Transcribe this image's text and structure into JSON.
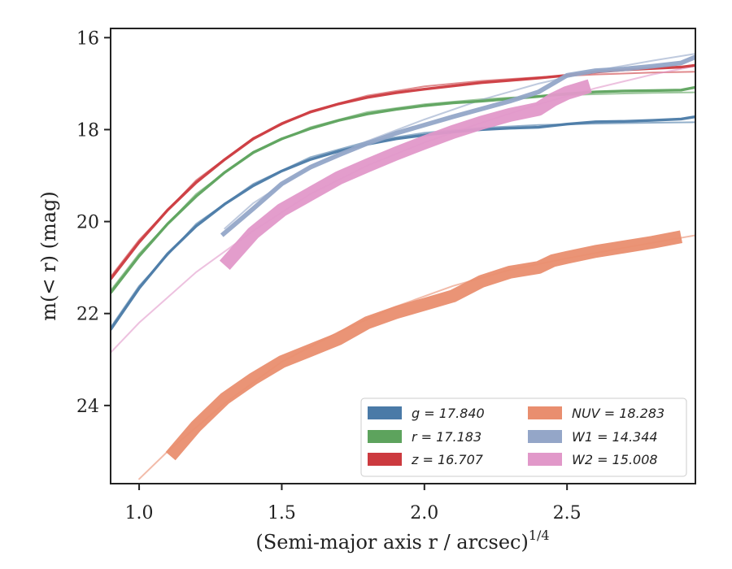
{
  "chart_data": {
    "type": "line",
    "title": "",
    "xlabel_main": "(Semi-major axis r / arcsec)",
    "xlabel_sup": "1/4",
    "ylabel_main": "m(< r) (mag)",
    "xlim": [
      0.9,
      2.95
    ],
    "ylim": [
      25.7,
      15.8
    ],
    "y_inverted": true,
    "x_ticks": [
      1.0,
      1.5,
      2.0,
      2.5
    ],
    "x_tick_labels": [
      "1.0",
      "1.5",
      "2.0",
      "2.5"
    ],
    "y_ticks": [
      16,
      18,
      20,
      22,
      24
    ],
    "y_tick_labels": [
      "16",
      "18",
      "20",
      "22",
      "24"
    ],
    "grid": false,
    "legend_position": "lower-right",
    "legend_columns": 2,
    "series": [
      {
        "name": "g = 17.840",
        "color": "#4a7aa7",
        "band_width": 0.06,
        "data": [
          [
            0.9,
            22.35
          ],
          [
            1.0,
            21.45
          ],
          [
            1.1,
            20.7
          ],
          [
            1.2,
            20.1
          ],
          [
            1.3,
            19.62
          ],
          [
            1.4,
            19.22
          ],
          [
            1.5,
            18.9
          ],
          [
            1.6,
            18.65
          ],
          [
            1.7,
            18.47
          ],
          [
            1.8,
            18.32
          ],
          [
            1.9,
            18.2
          ],
          [
            2.0,
            18.12
          ],
          [
            2.1,
            18.05
          ],
          [
            2.2,
            18.0
          ],
          [
            2.3,
            17.97
          ],
          [
            2.4,
            17.95
          ],
          [
            2.5,
            17.88
          ],
          [
            2.6,
            17.83
          ],
          [
            2.7,
            17.82
          ],
          [
            2.8,
            17.8
          ],
          [
            2.9,
            17.77
          ],
          [
            2.95,
            17.72
          ]
        ],
        "model": [
          [
            0.9,
            22.3
          ],
          [
            1.0,
            21.4
          ],
          [
            1.2,
            20.05
          ],
          [
            1.4,
            19.18
          ],
          [
            1.6,
            18.6
          ],
          [
            1.8,
            18.26
          ],
          [
            2.0,
            18.07
          ],
          [
            2.2,
            17.96
          ],
          [
            2.4,
            17.9
          ],
          [
            2.6,
            17.87
          ],
          [
            2.8,
            17.85
          ],
          [
            2.95,
            17.84
          ]
        ]
      },
      {
        "name": "r = 17.183",
        "color": "#5da35d",
        "band_width": 0.06,
        "data": [
          [
            0.9,
            21.55
          ],
          [
            1.0,
            20.75
          ],
          [
            1.1,
            20.05
          ],
          [
            1.2,
            19.45
          ],
          [
            1.3,
            18.93
          ],
          [
            1.4,
            18.5
          ],
          [
            1.5,
            18.2
          ],
          [
            1.6,
            17.98
          ],
          [
            1.7,
            17.8
          ],
          [
            1.8,
            17.66
          ],
          [
            1.9,
            17.56
          ],
          [
            2.0,
            17.48
          ],
          [
            2.1,
            17.42
          ],
          [
            2.2,
            17.38
          ],
          [
            2.3,
            17.33
          ],
          [
            2.4,
            17.28
          ],
          [
            2.5,
            17.22
          ],
          [
            2.6,
            17.18
          ],
          [
            2.7,
            17.16
          ],
          [
            2.8,
            17.15
          ],
          [
            2.9,
            17.14
          ],
          [
            2.95,
            17.08
          ]
        ],
        "model": [
          [
            0.9,
            21.5
          ],
          [
            1.0,
            20.7
          ],
          [
            1.2,
            19.4
          ],
          [
            1.4,
            18.48
          ],
          [
            1.6,
            17.95
          ],
          [
            1.8,
            17.62
          ],
          [
            2.0,
            17.45
          ],
          [
            2.2,
            17.34
          ],
          [
            2.4,
            17.27
          ],
          [
            2.6,
            17.23
          ],
          [
            2.8,
            17.2
          ],
          [
            2.95,
            17.19
          ]
        ]
      },
      {
        "name": "z = 16.707",
        "color": "#cc3a3f",
        "band_width": 0.06,
        "data": [
          [
            0.9,
            21.25
          ],
          [
            1.0,
            20.45
          ],
          [
            1.1,
            19.75
          ],
          [
            1.2,
            19.15
          ],
          [
            1.3,
            18.65
          ],
          [
            1.4,
            18.2
          ],
          [
            1.5,
            17.87
          ],
          [
            1.6,
            17.62
          ],
          [
            1.7,
            17.44
          ],
          [
            1.8,
            17.3
          ],
          [
            1.9,
            17.2
          ],
          [
            2.0,
            17.12
          ],
          [
            2.1,
            17.05
          ],
          [
            2.2,
            16.98
          ],
          [
            2.3,
            16.93
          ],
          [
            2.4,
            16.88
          ],
          [
            2.5,
            16.82
          ],
          [
            2.6,
            16.75
          ],
          [
            2.7,
            16.7
          ],
          [
            2.8,
            16.67
          ],
          [
            2.9,
            16.64
          ],
          [
            2.95,
            16.6
          ]
        ],
        "model": [
          [
            0.9,
            21.2
          ],
          [
            1.0,
            20.4
          ],
          [
            1.2,
            19.1
          ],
          [
            1.4,
            18.18
          ],
          [
            1.6,
            17.6
          ],
          [
            1.8,
            17.26
          ],
          [
            2.0,
            17.06
          ],
          [
            2.2,
            16.94
          ],
          [
            2.4,
            16.86
          ],
          [
            2.6,
            16.8
          ],
          [
            2.8,
            16.76
          ],
          [
            2.95,
            16.74
          ]
        ]
      },
      {
        "name": "NUV = 18.283",
        "color": "#e98e6f",
        "band_width": 0.28,
        "data": [
          [
            1.11,
            25.1
          ],
          [
            1.2,
            24.45
          ],
          [
            1.3,
            23.85
          ],
          [
            1.4,
            23.42
          ],
          [
            1.5,
            23.05
          ],
          [
            1.6,
            22.8
          ],
          [
            1.7,
            22.55
          ],
          [
            1.8,
            22.2
          ],
          [
            1.9,
            21.98
          ],
          [
            2.0,
            21.8
          ],
          [
            2.1,
            21.62
          ],
          [
            2.2,
            21.3
          ],
          [
            2.3,
            21.1
          ],
          [
            2.4,
            21.0
          ],
          [
            2.45,
            20.85
          ],
          [
            2.5,
            20.78
          ],
          [
            2.6,
            20.65
          ],
          [
            2.7,
            20.55
          ],
          [
            2.8,
            20.45
          ],
          [
            2.9,
            20.33
          ]
        ],
        "model": [
          [
            1.0,
            25.6
          ],
          [
            1.1,
            25.0
          ],
          [
            1.3,
            23.95
          ],
          [
            1.5,
            23.05
          ],
          [
            1.7,
            22.4
          ],
          [
            1.9,
            21.85
          ],
          [
            2.1,
            21.4
          ],
          [
            2.3,
            21.05
          ],
          [
            2.5,
            20.8
          ],
          [
            2.7,
            20.57
          ],
          [
            2.95,
            20.3
          ]
        ]
      },
      {
        "name": "W1 = 14.344",
        "color": "#94a6c8",
        "band_width": 0.1,
        "data": [
          [
            1.29,
            20.3
          ],
          [
            1.4,
            19.72
          ],
          [
            1.5,
            19.18
          ],
          [
            1.6,
            18.82
          ],
          [
            1.7,
            18.55
          ],
          [
            1.8,
            18.3
          ],
          [
            1.9,
            18.08
          ],
          [
            2.0,
            17.9
          ],
          [
            2.1,
            17.72
          ],
          [
            2.2,
            17.55
          ],
          [
            2.3,
            17.38
          ],
          [
            2.4,
            17.18
          ],
          [
            2.5,
            16.82
          ],
          [
            2.6,
            16.72
          ],
          [
            2.7,
            16.68
          ],
          [
            2.8,
            16.62
          ],
          [
            2.9,
            16.55
          ],
          [
            2.95,
            16.42
          ]
        ],
        "model": [
          [
            1.3,
            20.15
          ],
          [
            1.4,
            19.6
          ],
          [
            1.6,
            18.8
          ],
          [
            1.8,
            18.25
          ],
          [
            2.0,
            17.78
          ],
          [
            2.2,
            17.35
          ],
          [
            2.4,
            17.0
          ],
          [
            2.6,
            16.72
          ],
          [
            2.8,
            16.5
          ],
          [
            2.95,
            16.35
          ]
        ]
      },
      {
        "name": "W2 = 15.008",
        "color": "#e198c9",
        "band_width": 0.3,
        "data": [
          [
            1.3,
            20.95
          ],
          [
            1.4,
            20.25
          ],
          [
            1.5,
            19.75
          ],
          [
            1.6,
            19.4
          ],
          [
            1.7,
            19.05
          ],
          [
            1.8,
            18.78
          ],
          [
            1.9,
            18.52
          ],
          [
            2.0,
            18.28
          ],
          [
            2.1,
            18.05
          ],
          [
            2.2,
            17.85
          ],
          [
            2.3,
            17.68
          ],
          [
            2.4,
            17.55
          ],
          [
            2.45,
            17.35
          ],
          [
            2.5,
            17.2
          ],
          [
            2.58,
            17.05
          ]
        ],
        "model": [
          [
            0.9,
            22.85
          ],
          [
            1.0,
            22.2
          ],
          [
            1.2,
            21.1
          ],
          [
            1.4,
            20.2
          ],
          [
            1.6,
            19.4
          ],
          [
            1.8,
            18.78
          ],
          [
            2.0,
            18.28
          ],
          [
            2.2,
            17.85
          ],
          [
            2.4,
            17.45
          ],
          [
            2.6,
            17.1
          ],
          [
            2.8,
            16.8
          ],
          [
            2.95,
            16.62
          ]
        ]
      }
    ]
  }
}
